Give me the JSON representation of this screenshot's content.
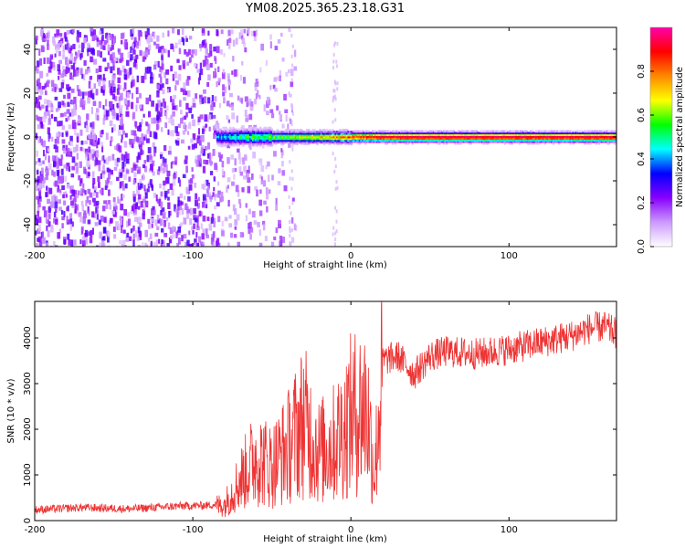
{
  "title": "YM08.2025.365.23.18.G31",
  "chart_data": [
    {
      "type": "heatmap",
      "xlabel": "Height of straight line (km)",
      "ylabel": "Frequency (Hz)",
      "xlim": [
        -200,
        168
      ],
      "ylim": [
        -50,
        50
      ],
      "x_ticks": [
        -200,
        -100,
        0,
        100
      ],
      "y_ticks": [
        -40,
        -20,
        0,
        20,
        40
      ],
      "colorbar": {
        "label": "Normalized spectral amplitude",
        "range": [
          0,
          1
        ],
        "ticks": [
          0.0,
          0.2,
          0.4,
          0.6,
          0.8
        ],
        "colors": [
          "#ffffff",
          "#cc99ff",
          "#8800ff",
          "#0000ff",
          "#00ffff",
          "#00ff00",
          "#ffff00",
          "#ff8800",
          "#ff0000",
          "#ff00aa"
        ]
      },
      "ridge": {
        "frequency_hz": 0,
        "x_start": -85,
        "x_end": 168,
        "peak_amplitude": 0.95
      }
    },
    {
      "type": "line",
      "xlabel": "Height of straight line (km)",
      "ylabel": "SNR (10 * v/v)",
      "xlim": [
        -200,
        168
      ],
      "ylim": [
        0,
        4800
      ],
      "x_ticks": [
        -200,
        -100,
        0,
        100
      ],
      "y_ticks": [
        0,
        1000,
        2000,
        3000,
        4000
      ],
      "color": "#ee3333",
      "envelope": {
        "x": [
          -200,
          -170,
          -140,
          -110,
          -90,
          -80,
          -70,
          -60,
          -50,
          -40,
          -30,
          -20,
          -10,
          0,
          10,
          15,
          20,
          30,
          40,
          50,
          60,
          80,
          100,
          120,
          140,
          150,
          160,
          168
        ],
        "y": [
          200,
          250,
          220,
          280,
          300,
          350,
          900,
          1400,
          1200,
          1600,
          2200,
          1500,
          1700,
          2300,
          2500,
          1000,
          3500,
          3600,
          3200,
          3600,
          3700,
          3650,
          3750,
          3900,
          4050,
          4200,
          4250,
          4100
        ]
      }
    }
  ]
}
